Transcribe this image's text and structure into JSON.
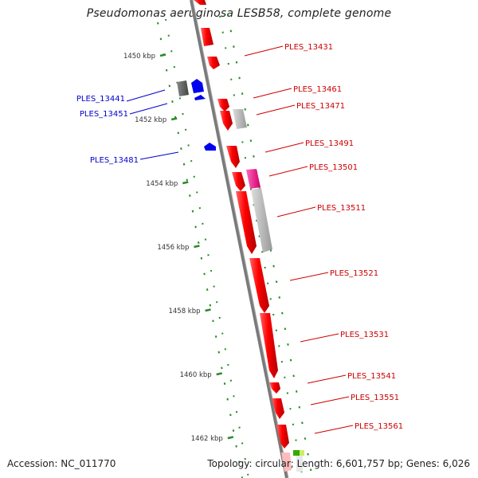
{
  "title": "Pseudomonas aeruginosa LESB58, complete genome",
  "accession_line": "Accession: NC_011770",
  "summary_line": "Topology: circular; Length: 6,601,757 bp; Genes: 6,026",
  "kbp_ticks": [
    {
      "label": "1450 kbp",
      "pos": 1450
    },
    {
      "label": "1452 kbp",
      "pos": 1452
    },
    {
      "label": "1454 kbp",
      "pos": 1454
    },
    {
      "label": "1456 kbp",
      "pos": 1456
    },
    {
      "label": "1458 kbp",
      "pos": 1458
    },
    {
      "label": "1460 kbp",
      "pos": 1460
    },
    {
      "label": "1462 kbp",
      "pos": 1462
    }
  ],
  "genes_forward": [
    {
      "label": "PLES_13431",
      "color": "#cc0000"
    },
    {
      "label": "PLES_13461",
      "color": "#cc0000"
    },
    {
      "label": "PLES_13471",
      "color": "#cc0000"
    },
    {
      "label": "PLES_13491",
      "color": "#cc0000"
    },
    {
      "label": "PLES_13501",
      "color": "#cc0000"
    },
    {
      "label": "PLES_13511",
      "color": "#cc0000"
    },
    {
      "label": "PLES_13521",
      "color": "#cc0000"
    },
    {
      "label": "PLES_13531",
      "color": "#cc0000"
    },
    {
      "label": "PLES_13541",
      "color": "#cc0000"
    },
    {
      "label": "PLES_13551",
      "color": "#cc0000"
    },
    {
      "label": "PLES_13561",
      "color": "#cc0000"
    }
  ],
  "genes_reverse": [
    {
      "label": "PLES_13441",
      "color": "#0000cc"
    },
    {
      "label": "PLES_13451",
      "color": "#0000cc"
    },
    {
      "label": "PLES_13481",
      "color": "#0000cc"
    }
  ],
  "colors": {
    "forward": "#ff0000",
    "reverse": "#0000ff",
    "backbone": "#777777",
    "tick": "#2a8a2a",
    "pink": "#ff3399",
    "grey_feature": "#bbbbbb",
    "dark_feature": "#555555"
  }
}
